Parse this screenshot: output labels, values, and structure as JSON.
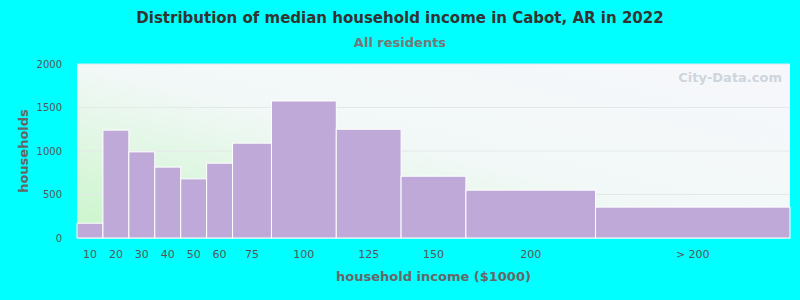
{
  "chart_data": {
    "type": "bar",
    "title": "Distribution of median household income in Cabot, AR in 2022",
    "subtitle": "All residents",
    "x_label": "household income ($1000)",
    "y_label": "households",
    "annotations": [
      "City-Data.com"
    ],
    "categories": [
      "10",
      "20",
      "30",
      "40",
      "50",
      "60",
      "75",
      "100",
      "125",
      "150",
      "200",
      "> 200"
    ],
    "values": [
      170,
      1240,
      990,
      815,
      680,
      860,
      1090,
      1575,
      1250,
      710,
      550,
      355
    ],
    "color": "#bfa9d8",
    "ylim": [
      0,
      2000
    ],
    "yticks": [
      0,
      500,
      1000,
      1500,
      2000
    ],
    "grid": true
  }
}
